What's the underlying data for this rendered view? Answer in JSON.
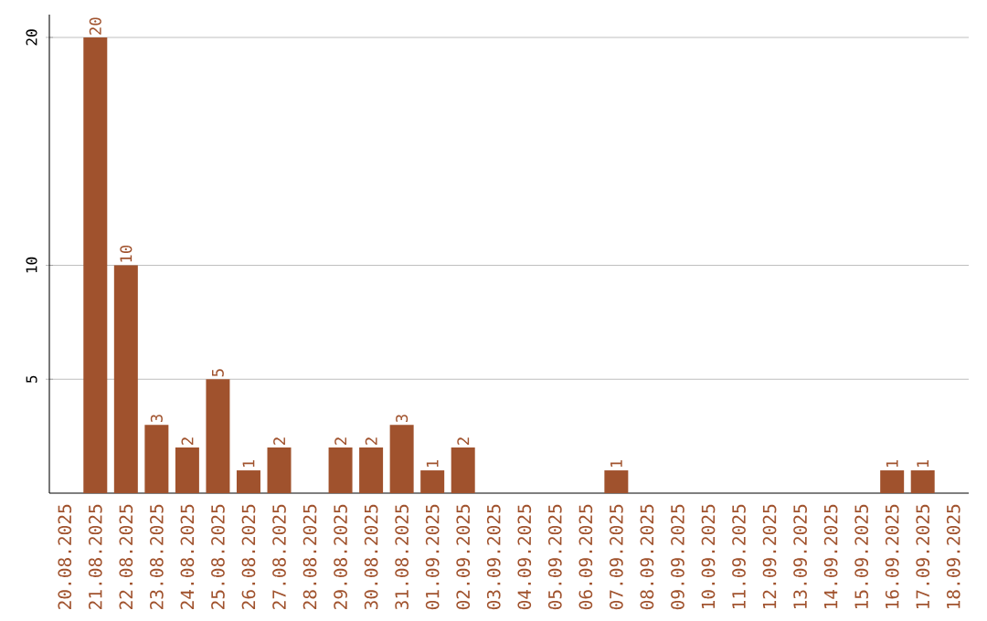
{
  "chart_data": {
    "type": "bar",
    "categories": [
      "20.08.2025",
      "21.08.2025",
      "22.08.2025",
      "23.08.2025",
      "24.08.2025",
      "25.08.2025",
      "26.08.2025",
      "27.08.2025",
      "28.08.2025",
      "29.08.2025",
      "30.08.2025",
      "31.08.2025",
      "01.09.2025",
      "02.09.2025",
      "03.09.2025",
      "04.09.2025",
      "05.09.2025",
      "06.09.2025",
      "07.09.2025",
      "08.09.2025",
      "09.09.2025",
      "10.09.2025",
      "11.09.2025",
      "12.09.2025",
      "13.09.2025",
      "14.09.2025",
      "15.09.2025",
      "16.09.2025",
      "17.09.2025",
      "18.09.2025"
    ],
    "values": [
      0,
      20,
      10,
      3,
      2,
      5,
      1,
      2,
      0,
      2,
      2,
      3,
      1,
      2,
      0,
      0,
      0,
      0,
      1,
      0,
      0,
      0,
      0,
      0,
      0,
      0,
      0,
      1,
      1,
      0
    ],
    "value_labels": [
      null,
      "20",
      "10",
      "3",
      "2",
      "5",
      "1",
      "2",
      null,
      "2",
      "2",
      "3",
      "1",
      "2",
      null,
      null,
      null,
      null,
      "1",
      null,
      null,
      null,
      null,
      null,
      null,
      null,
      null,
      "1",
      "1",
      null
    ],
    "color": "#a0522d",
    "ylim": [
      0,
      21
    ],
    "yticks": [
      5,
      10,
      20
    ],
    "grid": "y"
  }
}
